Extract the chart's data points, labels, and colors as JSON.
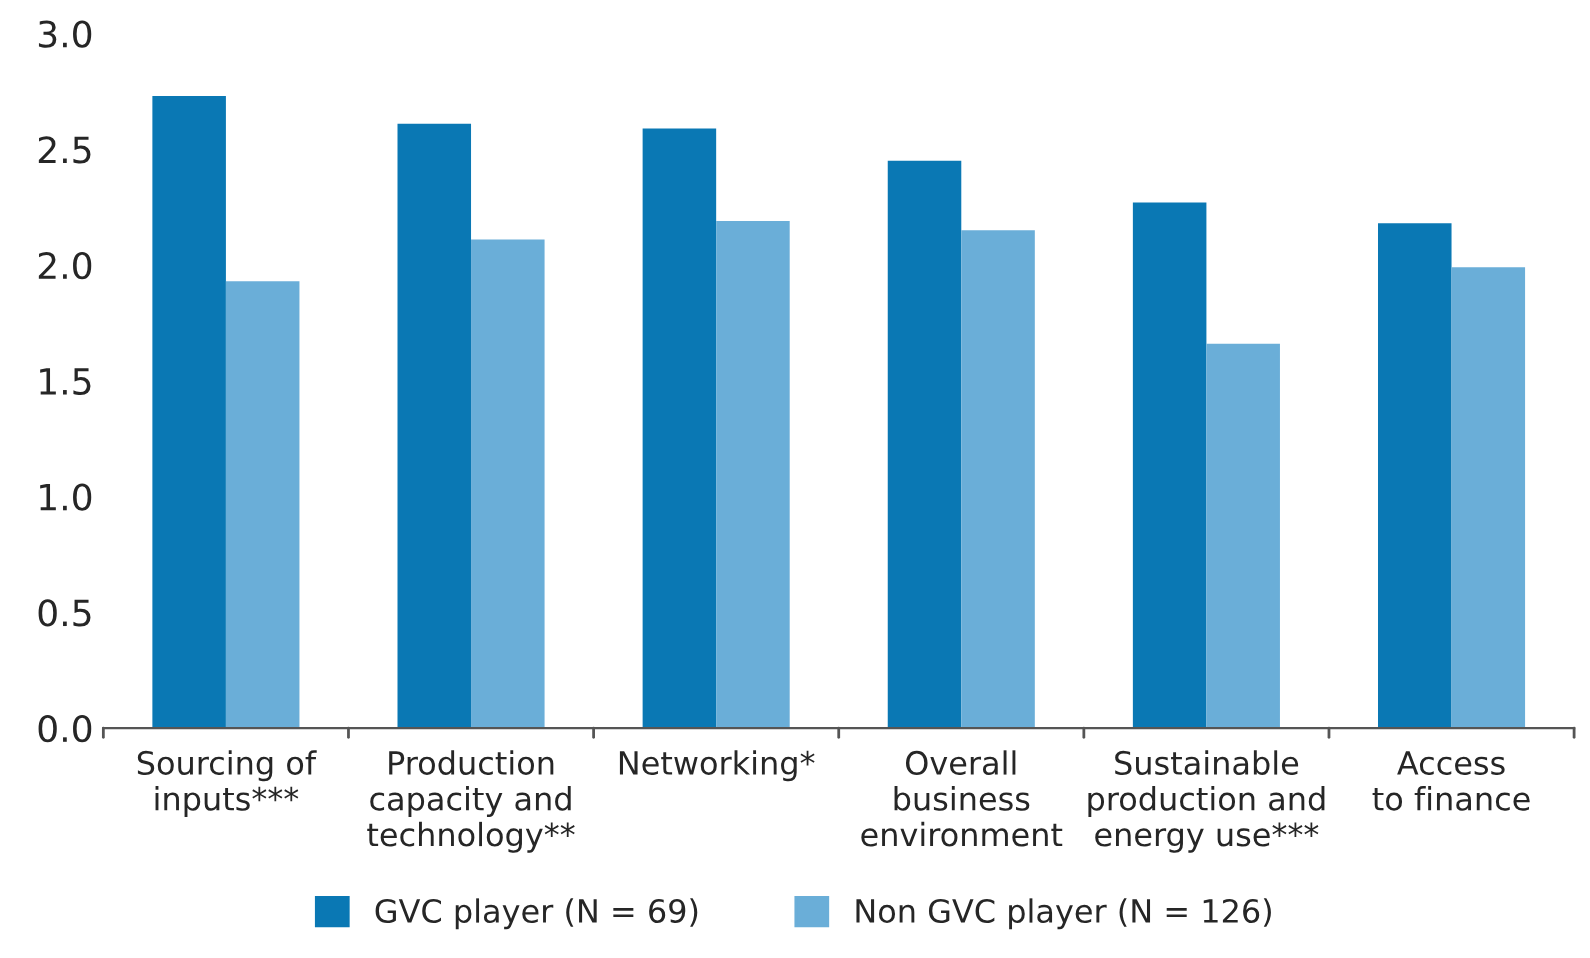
{
  "chart_data": {
    "type": "bar",
    "categories": [
      "Sourcing of\ninputs***",
      "Production\ncapacity and\ntechnology**",
      "Networking*",
      "Overall\nbusiness\nenvironment",
      "Sustainable\nproduction and\nenergy use***",
      "Access\nto finance"
    ],
    "series": [
      {
        "name": "GVC player (N = 69)",
        "color": "#0a78b4",
        "values": [
          2.73,
          2.61,
          2.59,
          2.45,
          2.27,
          2.18
        ]
      },
      {
        "name": "Non GVC player (N = 126)",
        "color": "#6aaed8",
        "values": [
          1.93,
          2.11,
          2.19,
          2.15,
          1.66,
          1.99
        ]
      }
    ],
    "ylim": [
      0,
      3
    ],
    "yticks": [
      {
        "value": 0,
        "label": "0.0"
      },
      {
        "value": 0.5,
        "label": "0.5"
      },
      {
        "value": 1,
        "label": "1.0"
      },
      {
        "value": 1.5,
        "label": "1.5"
      },
      {
        "value": 2,
        "label": "2.0"
      },
      {
        "value": 2.5,
        "label": "2.5"
      },
      {
        "value": 3,
        "label": "3.0"
      }
    ],
    "grid": false,
    "legend": "bottom"
  }
}
